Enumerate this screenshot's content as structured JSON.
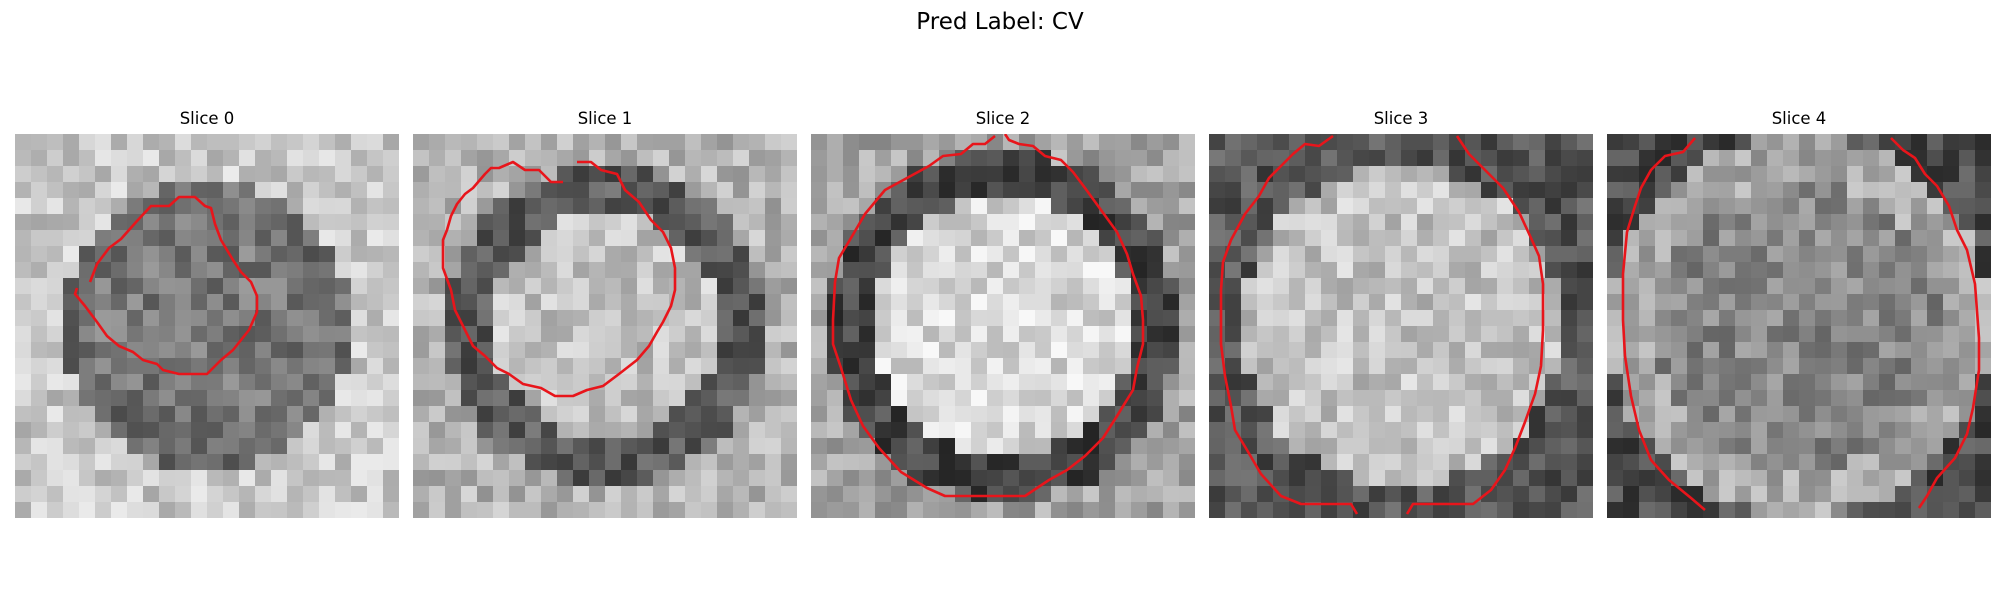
{
  "figure": {
    "title": "Pred Label: CV"
  },
  "panels": [
    {
      "title": "Slice 0",
      "seed": 11,
      "contour_color": "#e8151b"
    },
    {
      "title": "Slice 1",
      "seed": 23,
      "contour_color": "#e8151b"
    },
    {
      "title": "Slice 2",
      "seed": 37,
      "contour_color": "#e8151b"
    },
    {
      "title": "Slice 3",
      "seed": 51,
      "contour_color": "#e8151b"
    },
    {
      "title": "Slice 4",
      "seed": 67,
      "contour_color": "#e8151b"
    }
  ]
}
